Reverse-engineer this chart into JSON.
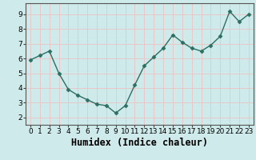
{
  "x": [
    0,
    1,
    2,
    3,
    4,
    5,
    6,
    7,
    8,
    9,
    10,
    11,
    12,
    13,
    14,
    15,
    16,
    17,
    18,
    19,
    20,
    21,
    22,
    23
  ],
  "y": [
    5.9,
    6.2,
    6.5,
    5.0,
    3.9,
    3.5,
    3.2,
    2.9,
    2.8,
    2.3,
    2.8,
    4.2,
    5.5,
    6.1,
    6.7,
    7.6,
    7.1,
    6.7,
    6.5,
    6.9,
    7.5,
    9.2,
    8.5,
    9.0
  ],
  "line_color": "#2d6e63",
  "marker": "D",
  "marker_size": 2.5,
  "bg_color": "#ceeaea",
  "grid_color": "#e8c8c8",
  "xlabel": "Humidex (Indice chaleur)",
  "xlim": [
    -0.5,
    23.5
  ],
  "ylim": [
    1.5,
    9.75
  ],
  "yticks": [
    2,
    3,
    4,
    5,
    6,
    7,
    8,
    9
  ],
  "xticks": [
    0,
    1,
    2,
    3,
    4,
    5,
    6,
    7,
    8,
    9,
    10,
    11,
    12,
    13,
    14,
    15,
    16,
    17,
    18,
    19,
    20,
    21,
    22,
    23
  ],
  "tick_fontsize": 6.5,
  "xlabel_fontsize": 8.5
}
